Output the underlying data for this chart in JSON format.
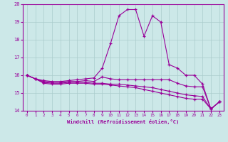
{
  "xlabel": "Windchill (Refroidissement éolien,°C)",
  "x_ticks": [
    0,
    1,
    2,
    3,
    4,
    5,
    6,
    7,
    8,
    9,
    10,
    11,
    12,
    13,
    14,
    15,
    16,
    17,
    18,
    19,
    20,
    21,
    22,
    23
  ],
  "ylim": [
    14,
    20
  ],
  "y_ticks": [
    14,
    15,
    16,
    17,
    18,
    19,
    20
  ],
  "bg_color": "#cce8e8",
  "line_color": "#990099",
  "grid_color": "#aacccc",
  "lines": [
    [
      16.0,
      15.8,
      15.7,
      15.65,
      15.65,
      15.7,
      15.75,
      15.8,
      15.85,
      16.4,
      17.8,
      19.35,
      19.7,
      19.7,
      18.2,
      19.35,
      19.0,
      16.6,
      16.4,
      16.0,
      16.0,
      15.5,
      14.1,
      14.5
    ],
    [
      16.0,
      15.8,
      15.65,
      15.6,
      15.6,
      15.65,
      15.65,
      15.7,
      15.65,
      15.9,
      15.8,
      15.75,
      15.75,
      15.75,
      15.75,
      15.75,
      15.75,
      15.75,
      15.55,
      15.4,
      15.35,
      15.35,
      14.1,
      14.5
    ],
    [
      16.0,
      15.8,
      15.6,
      15.55,
      15.55,
      15.6,
      15.6,
      15.6,
      15.55,
      15.55,
      15.5,
      15.5,
      15.45,
      15.4,
      15.35,
      15.3,
      15.2,
      15.1,
      15.0,
      14.9,
      14.85,
      14.8,
      14.1,
      14.5
    ],
    [
      16.0,
      15.8,
      15.55,
      15.5,
      15.5,
      15.55,
      15.55,
      15.55,
      15.5,
      15.5,
      15.45,
      15.4,
      15.35,
      15.3,
      15.2,
      15.1,
      15.0,
      14.9,
      14.8,
      14.7,
      14.65,
      14.65,
      14.1,
      14.5
    ]
  ]
}
